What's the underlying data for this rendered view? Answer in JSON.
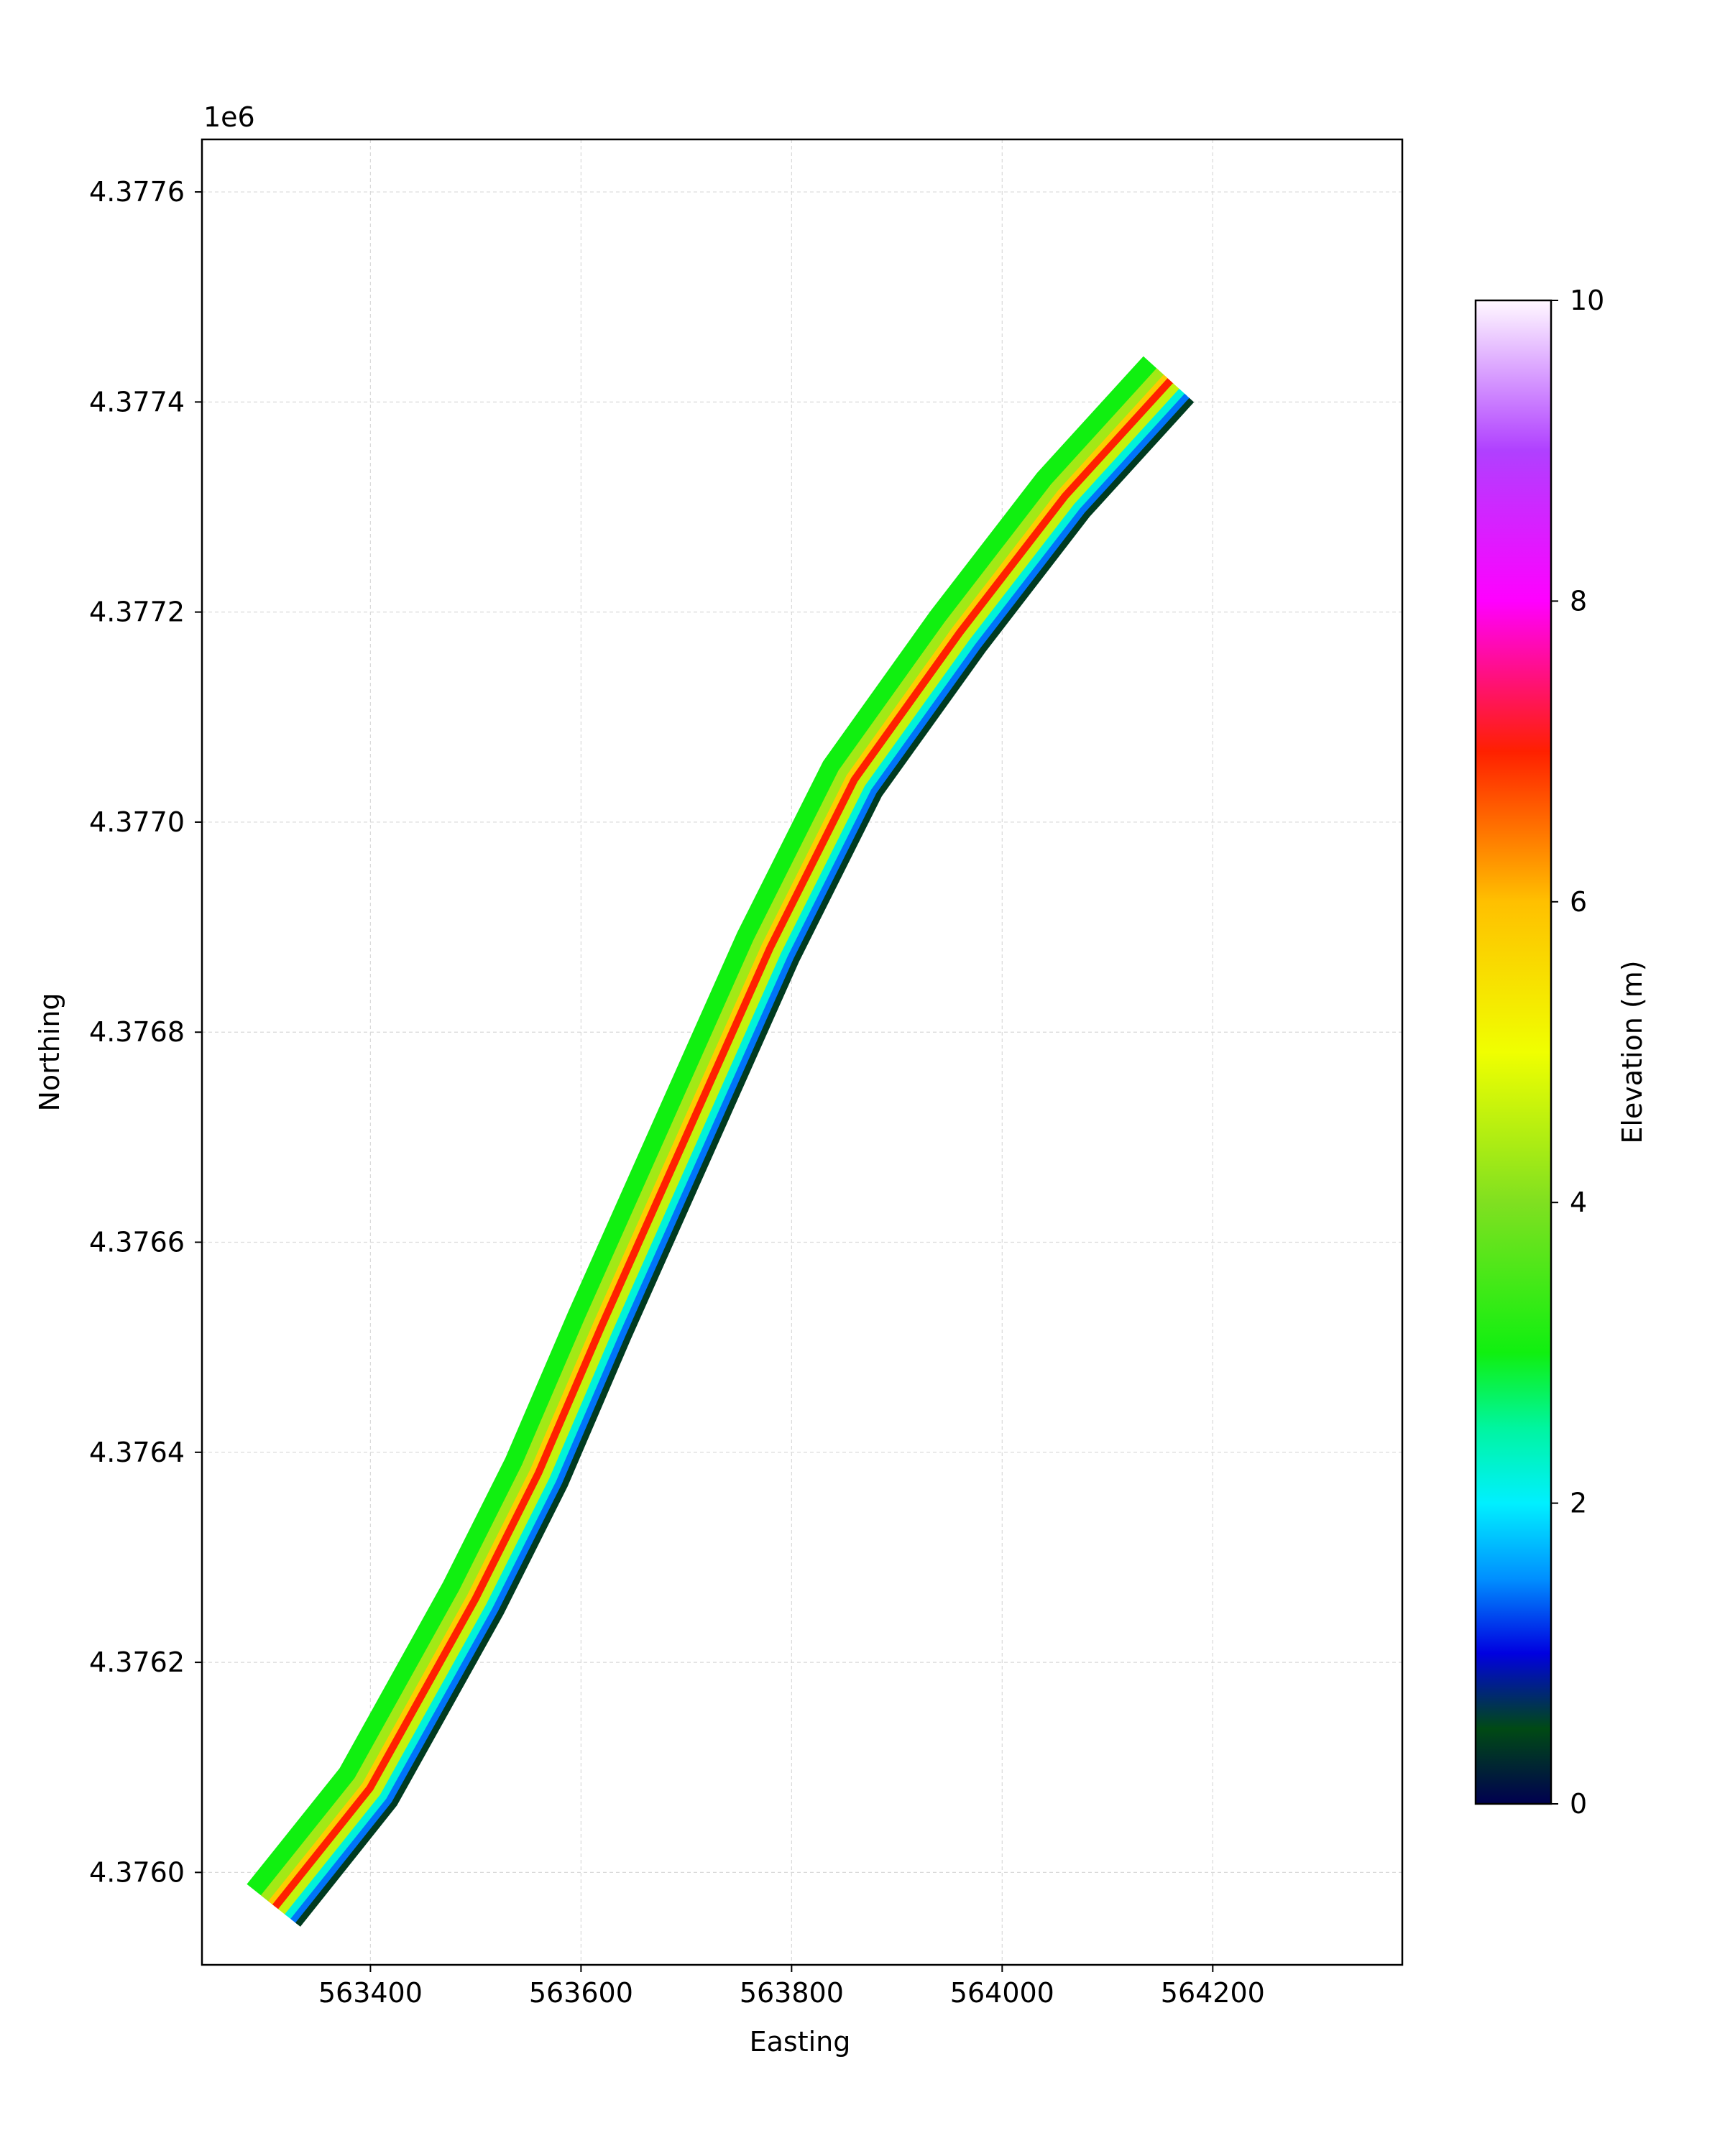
{
  "chart_data": {
    "type": "heatmap",
    "title": "",
    "xlabel": "Easting",
    "ylabel": "Northing",
    "offset_label": "1e6",
    "xlim": [
      563240,
      564380
    ],
    "ylim": [
      4375912,
      4377650
    ],
    "x_ticks": [
      563400,
      563600,
      563800,
      564000,
      564200
    ],
    "x_tick_labels": [
      "563400",
      "563600",
      "563800",
      "564000",
      "564200"
    ],
    "y_ticks": [
      4376000,
      4376200,
      4376400,
      4376600,
      4376800,
      4377000,
      4377200,
      4377400,
      4377600
    ],
    "y_tick_labels": [
      "4.3760",
      "4.3762",
      "4.3764",
      "4.3766",
      "4.3768",
      "4.3770",
      "4.3772",
      "4.3774",
      "4.3776"
    ],
    "grid": true,
    "colorbar": {
      "label": "Elevation (m)",
      "range": [
        0,
        10
      ],
      "ticks": [
        0,
        2,
        4,
        6,
        8,
        10
      ],
      "tick_labels": [
        "0",
        "2",
        "4",
        "6",
        "8",
        "10"
      ],
      "colormap_stops": [
        {
          "value": 0.0,
          "color": "#000050"
        },
        {
          "value": 0.5,
          "color": "#004a14"
        },
        {
          "value": 1.0,
          "color": "#0000e0"
        },
        {
          "value": 1.5,
          "color": "#0090ff"
        },
        {
          "value": 2.0,
          "color": "#00f0ff"
        },
        {
          "value": 2.5,
          "color": "#00f5a0"
        },
        {
          "value": 3.0,
          "color": "#10f010"
        },
        {
          "value": 4.0,
          "color": "#80e020"
        },
        {
          "value": 5.0,
          "color": "#f0ff00"
        },
        {
          "value": 6.0,
          "color": "#ffc000"
        },
        {
          "value": 7.0,
          "color": "#ff2000"
        },
        {
          "value": 8.0,
          "color": "#ff00ff"
        },
        {
          "value": 9.0,
          "color": "#b040ff"
        },
        {
          "value": 10.0,
          "color": "#fff8ff"
        }
      ]
    },
    "centerline": [
      [
        563310,
        4375967
      ],
      [
        563400,
        4376080
      ],
      [
        563500,
        4376260
      ],
      [
        563560,
        4376380
      ],
      [
        563620,
        4376520
      ],
      [
        563700,
        4376700
      ],
      [
        563780,
        4376880
      ],
      [
        563860,
        4377040
      ],
      [
        563960,
        4377180
      ],
      [
        564060,
        4377310
      ],
      [
        564160,
        4377420
      ]
    ],
    "bands": [
      {
        "name": "",
        "offset_m": 18,
        "half_width_m": 17,
        "elevation": 3.0
      },
      {
        "name": "",
        "offset_m": 10,
        "half_width_m": 8,
        "elevation": 4.3
      },
      {
        "name": "",
        "offset_m": 4,
        "half_width_m": 5,
        "elevation": 5.8
      },
      {
        "name": "",
        "offset_m": 0,
        "half_width_m": 4,
        "elevation": 7.0
      },
      {
        "name": "",
        "offset_m": -8,
        "half_width_m": 5,
        "elevation": 4.6
      },
      {
        "name": "",
        "offset_m": -16,
        "half_width_m": 5,
        "elevation": 2.2
      },
      {
        "name": "",
        "offset_m": -22,
        "half_width_m": 4,
        "elevation": 1.4
      },
      {
        "name": "",
        "offset_m": -27,
        "half_width_m": 3,
        "elevation": 0.4
      }
    ]
  }
}
